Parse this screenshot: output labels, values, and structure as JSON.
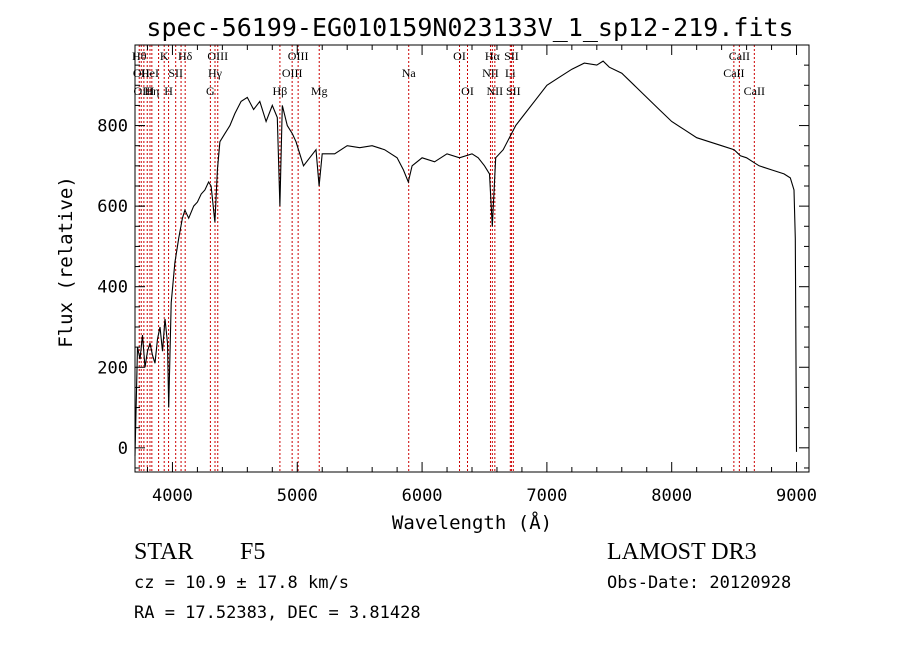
{
  "chart_data": {
    "type": "line",
    "title": "spec-56199-EG010159N023133V_1_sp12-219.fits",
    "xlabel": "Wavelength (Å)",
    "ylabel": "Flux (relative)",
    "xlim": [
      3700,
      9100
    ],
    "ylim": [
      -60,
      1000
    ],
    "xticks": [
      4000,
      5000,
      6000,
      7000,
      8000,
      9000
    ],
    "yticks": [
      0,
      200,
      400,
      600,
      800
    ],
    "grid": false,
    "line_color": "#000000",
    "marker_color": "#cc0000",
    "series": [
      {
        "x": [
          3700,
          3720,
          3740,
          3760,
          3780,
          3800,
          3820,
          3840,
          3860,
          3880,
          3900,
          3920,
          3940,
          3960,
          3970,
          3990,
          4020,
          4050,
          4080,
          4100,
          4130,
          4170,
          4200,
          4230,
          4260,
          4290,
          4310,
          4340,
          4360,
          4380,
          4420,
          4460,
          4500,
          4550,
          4600,
          4650,
          4700,
          4750,
          4800,
          4840,
          4861,
          4880,
          4920,
          4960,
          4990,
          5050,
          5100,
          5150,
          5175,
          5200,
          5300,
          5400,
          5500,
          5600,
          5700,
          5800,
          5850,
          5890,
          5920,
          6000,
          6100,
          6200,
          6300,
          6400,
          6450,
          6500,
          6540,
          6563,
          6590,
          6650,
          6700,
          6750,
          6800,
          6900,
          7000,
          7100,
          7200,
          7300,
          7400,
          7450,
          7500,
          7600,
          7700,
          7800,
          7900,
          8000,
          8100,
          8200,
          8300,
          8400,
          8500,
          8550,
          8600,
          8650,
          8700,
          8800,
          8900,
          8950,
          8980,
          8990,
          9000
        ],
        "y": [
          -20,
          250,
          220,
          280,
          200,
          240,
          260,
          230,
          210,
          270,
          300,
          240,
          320,
          260,
          100,
          360,
          460,
          520,
          570,
          590,
          570,
          600,
          610,
          630,
          640,
          660,
          650,
          560,
          690,
          760,
          780,
          800,
          830,
          860,
          870,
          840,
          860,
          810,
          850,
          820,
          600,
          850,
          800,
          780,
          760,
          700,
          720,
          740,
          650,
          730,
          730,
          750,
          745,
          750,
          740,
          720,
          690,
          660,
          700,
          720,
          710,
          730,
          720,
          730,
          720,
          700,
          680,
          550,
          720,
          740,
          770,
          800,
          820,
          860,
          900,
          920,
          940,
          955,
          950,
          960,
          945,
          930,
          900,
          870,
          840,
          810,
          790,
          770,
          760,
          750,
          740,
          725,
          720,
          710,
          700,
          690,
          680,
          670,
          640,
          520,
          -10
        ]
      }
    ],
    "line_markers": [
      {
        "x": 3734,
        "label": "Hθ",
        "row": 1
      },
      {
        "x": 3750,
        "label": "OII",
        "row": 2
      },
      {
        "x": 3771,
        "label": "OIII",
        "row": 3
      },
      {
        "x": 3798,
        "label": "",
        "row": 0
      },
      {
        "x": 3820,
        "label": "HeI",
        "row": 2
      },
      {
        "x": 3835,
        "label": "Hη",
        "row": 3
      },
      {
        "x": 3889,
        "label": "",
        "row": 0
      },
      {
        "x": 3934,
        "label": "K",
        "row": 1
      },
      {
        "x": 3969,
        "label": "H",
        "row": 3
      },
      {
        "x": 4026,
        "label": "SII",
        "row": 2
      },
      {
        "x": 4069,
        "label": "",
        "row": 0
      },
      {
        "x": 4102,
        "label": "Hδ",
        "row": 1
      },
      {
        "x": 4304,
        "label": "G",
        "row": 3
      },
      {
        "x": 4341,
        "label": "Hγ",
        "row": 2
      },
      {
        "x": 4363,
        "label": "OIII",
        "row": 1
      },
      {
        "x": 4861,
        "label": "Hβ",
        "row": 3
      },
      {
        "x": 4959,
        "label": "OIII",
        "row": 2
      },
      {
        "x": 5007,
        "label": "OIII",
        "row": 1
      },
      {
        "x": 5176,
        "label": "Mg",
        "row": 3
      },
      {
        "x": 5893,
        "label": "Na",
        "row": 2
      },
      {
        "x": 6300,
        "label": "OI",
        "row": 1
      },
      {
        "x": 6364,
        "label": "OI",
        "row": 3
      },
      {
        "x": 6548,
        "label": "NII",
        "row": 2
      },
      {
        "x": 6563,
        "label": "Hα",
        "row": 1
      },
      {
        "x": 6583,
        "label": "NII",
        "row": 3
      },
      {
        "x": 6707,
        "label": "Li",
        "row": 2
      },
      {
        "x": 6716,
        "label": "SII",
        "row": 1
      },
      {
        "x": 6731,
        "label": "SII",
        "row": 3
      },
      {
        "x": 8498,
        "label": "CaII",
        "row": 2
      },
      {
        "x": 8542,
        "label": "CaII",
        "row": 1
      },
      {
        "x": 8662,
        "label": "CaII",
        "row": 3
      }
    ]
  },
  "info": {
    "object_class": "STAR",
    "subclass": "F5",
    "survey": "LAMOST DR3",
    "cz": "cz = 10.9 ± 17.8 km/s",
    "obs_date": "Obs-Date: 20120928",
    "coords": "RA =  17.52383, DEC =   3.81428"
  }
}
